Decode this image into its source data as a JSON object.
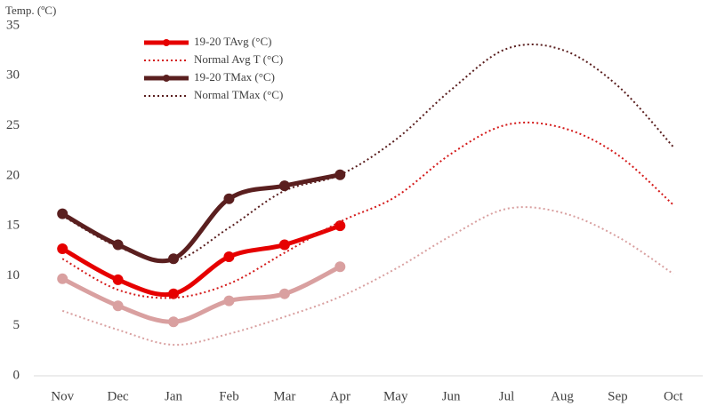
{
  "chart_data": {
    "type": "line",
    "y_label": "Temp. (ºC)",
    "categories": [
      "Nov",
      "Dec",
      "Jan",
      "Feb",
      "Mar",
      "Apr",
      "May",
      "Jun",
      "Jul",
      "Aug",
      "Sep",
      "Oct"
    ],
    "ylim": [
      0,
      35
    ],
    "yticks": [
      0,
      5,
      10,
      15,
      20,
      25,
      30,
      35
    ],
    "grid": false,
    "series": [
      {
        "name": "19-20  TAvg (°C)",
        "color": "#e60000",
        "style": "solid",
        "values": [
          12.7,
          9.6,
          8.2,
          11.9,
          13.1,
          15.0,
          null,
          null,
          null,
          null,
          null,
          null
        ]
      },
      {
        "name": "Normal  Avg T (°C)",
        "color": "#d41a1a",
        "style": "dotted",
        "values": [
          11.7,
          8.6,
          7.8,
          9.2,
          12.3,
          15.4,
          17.9,
          22.2,
          25.1,
          24.8,
          22.1,
          17.1
        ]
      },
      {
        "name": "19-20  TMax (°C)",
        "color": "#5a1f1f",
        "style": "solid",
        "values": [
          16.2,
          13.1,
          11.7,
          17.7,
          19.0,
          20.1,
          null,
          null,
          null,
          null,
          null,
          null
        ]
      },
      {
        "name": "Normal  TMax (°C)",
        "color": "#5a1f1f",
        "style": "dotted",
        "values": [
          16.0,
          12.9,
          11.5,
          14.8,
          18.5,
          20.1,
          23.6,
          28.6,
          32.7,
          32.6,
          29.0,
          22.9
        ]
      },
      {
        "color": "#d9a0a0",
        "style": "solid",
        "values": [
          9.7,
          7.0,
          5.4,
          7.5,
          8.2,
          10.9,
          null,
          null,
          null,
          null,
          null,
          null
        ]
      },
      {
        "color": "#d9a0a0",
        "style": "dotted",
        "values": [
          6.5,
          4.6,
          3.1,
          4.2,
          5.9,
          7.9,
          10.7,
          14.0,
          16.7,
          16.3,
          13.9,
          10.2
        ]
      }
    ]
  }
}
